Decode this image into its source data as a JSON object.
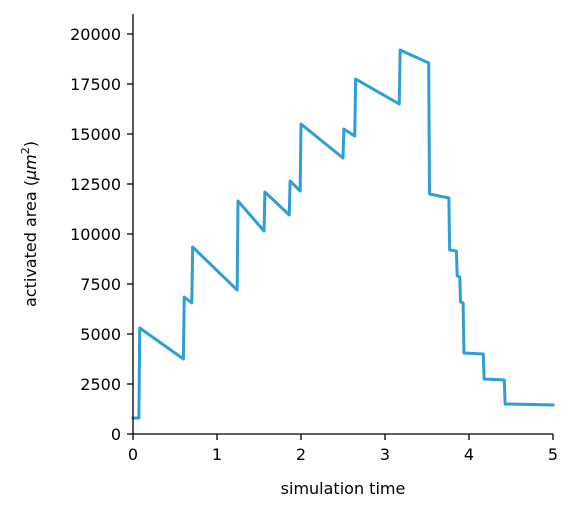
{
  "chart_data": {
    "type": "line",
    "xlabel": "simulation time",
    "ylabel": "activated area (",
    "ylabel_unit": "μm",
    "ylabel_unit_sup": "2",
    "ylabel_close": ")",
    "xlim": [
      0,
      5
    ],
    "ylim": [
      0,
      21000
    ],
    "x_ticks": [
      0,
      1,
      2,
      3,
      4,
      5
    ],
    "x_tick_labels": [
      "0",
      "1",
      "2",
      "3",
      "4",
      "5"
    ],
    "y_ticks": [
      0,
      2500,
      5000,
      7500,
      10000,
      12500,
      15000,
      17500,
      20000
    ],
    "y_tick_labels": [
      "0",
      "2500",
      "5000",
      "7500",
      "10000",
      "12500",
      "15000",
      "17500",
      "20000"
    ],
    "grid": false,
    "series": [
      {
        "color": "#2E9FD6",
        "x": [
          0,
          0.07,
          0.08,
          0.6,
          0.61,
          0.7,
          0.71,
          1.24,
          1.25,
          1.56,
          1.57,
          1.86,
          1.87,
          1.99,
          2.0,
          2.5,
          2.51,
          2.64,
          2.65,
          3.17,
          3.18,
          3.52,
          3.53,
          3.76,
          3.77,
          3.85,
          3.86,
          3.89,
          3.9,
          3.93,
          3.94,
          4.17,
          4.18,
          4.42,
          4.43,
          5.0
        ],
        "y": [
          800,
          800,
          5300,
          3750,
          6850,
          6550,
          9350,
          7200,
          11650,
          10150,
          12100,
          10950,
          12650,
          12150,
          15500,
          13800,
          15250,
          14900,
          17750,
          16500,
          19200,
          18550,
          12000,
          11800,
          9200,
          9150,
          7900,
          7850,
          6600,
          6550,
          4050,
          4000,
          2750,
          2700,
          1500,
          1450
        ]
      }
    ]
  }
}
